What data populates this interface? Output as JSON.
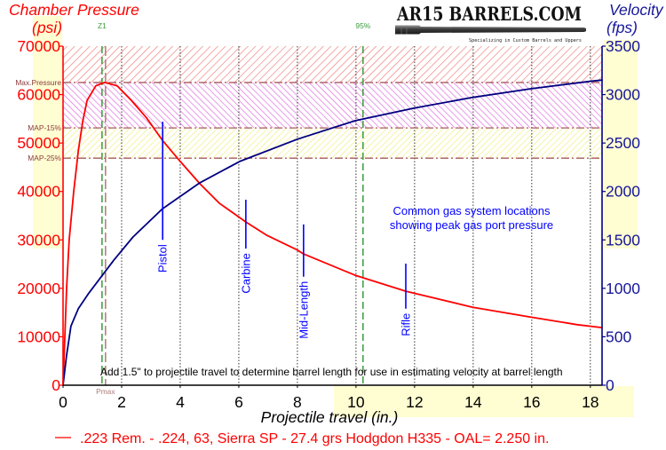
{
  "logo": {
    "title": "AR15 BARRELS.COM",
    "tagline": "Specializing in Custom Barrels and Uppers"
  },
  "colors": {
    "pressure": "#ff0000",
    "velocity": "#000080",
    "velocity_text": "#16169a",
    "gas_port": "#0000ff",
    "reference_line": "#a85a5a",
    "reference_text": "#8b3a3a",
    "marker_green": "#3a9a3a",
    "marker_brown": "#b07a7a",
    "highlight": "#fffdd2",
    "band_red": "#f07878",
    "band_magenta": "#e070e0",
    "band_yellow": "#f2ee78"
  },
  "chart_data": {
    "type": "line",
    "title": "",
    "xlabel": "Projectile travel (in.)",
    "ylabel": "Chamber Pressure (psi)",
    "y2label": "Velocity (fps)",
    "ylabel_display": [
      "Chamber Pressure",
      "(psi)"
    ],
    "y2label_display": [
      "Velocity",
      "(fps)"
    ],
    "xlim": [
      0,
      18.4
    ],
    "ylim": [
      0,
      70000
    ],
    "y2lim": [
      0,
      3500
    ],
    "xticks": [
      0,
      2,
      4,
      6,
      8,
      10,
      12,
      14,
      16,
      18
    ],
    "yticks": [
      0,
      10000,
      20000,
      30000,
      40000,
      50000,
      60000,
      70000
    ],
    "y2ticks": [
      0,
      500,
      1000,
      1500,
      2000,
      2500,
      3000,
      3500
    ],
    "grid": {
      "x": true,
      "y": false,
      "style": "dotted"
    },
    "legend": {
      "position": "bottom",
      "entries": [
        ".223 Rem. - .224, 63, Sierra SP - 27.4 grs Hodgdon H335 - OAL= 2.250 in."
      ]
    },
    "series": [
      {
        "name": "Chamber Pressure",
        "axis": "left",
        "unit": "psi",
        "color": "#ff0000",
        "x": [
          0,
          0.06,
          0.12,
          0.21,
          0.36,
          0.52,
          0.67,
          0.82,
          1.12,
          1.42,
          1.85,
          2.33,
          2.85,
          3.39,
          4.0,
          4.67,
          5.33,
          6.24,
          6.94,
          8.0,
          8.21,
          9.97,
          11.7,
          13.97,
          15.94,
          17.55,
          18.4
        ],
        "y": [
          0,
          9900,
          20000,
          30000,
          39800,
          48400,
          54400,
          58800,
          61800,
          62500,
          61800,
          58800,
          55200,
          50600,
          46200,
          41600,
          37600,
          33700,
          31000,
          27900,
          27100,
          22700,
          19400,
          16100,
          14100,
          12500,
          11900
        ]
      },
      {
        "name": "Velocity",
        "axis": "right",
        "unit": "fps",
        "color": "#000080",
        "x": [
          0,
          0.12,
          0.27,
          0.52,
          0.88,
          1.73,
          2.39,
          3.39,
          4.67,
          6.03,
          8.0,
          9.97,
          11.97,
          13.97,
          15.97,
          17.94,
          18.4
        ],
        "y": [
          0,
          310,
          610,
          790,
          950,
          1290,
          1530,
          1820,
          2090,
          2310,
          2540,
          2730,
          2860,
          2970,
          3060,
          3135,
          3150
        ]
      }
    ],
    "bands": [
      {
        "name": "over-max-pressure",
        "from": 62500,
        "to": 70000,
        "pattern": "hatch-red"
      },
      {
        "name": "max-to-map-15",
        "from": 53125,
        "to": 62500,
        "pattern": "hatch-magenta"
      },
      {
        "name": "map-15-to-map-25",
        "from": 46875,
        "to": 53125,
        "pattern": "hatch-yellow"
      }
    ],
    "reference_lines": [
      {
        "label": "Max.Pressure",
        "value": 62500
      },
      {
        "label": "MAP-15%",
        "value": 53125
      },
      {
        "label": "MAP-25%",
        "value": 46875
      }
    ],
    "vertical_markers": [
      {
        "label": "Z1",
        "x": 1.33,
        "color": "#3a9a3a",
        "label_pos": "top"
      },
      {
        "label": "Pmax",
        "x": 1.45,
        "color": "#b07a7a",
        "label_pos": "bottom"
      },
      {
        "label": "95%",
        "x": 10.24,
        "color": "#3a9a3a",
        "label_pos": "top"
      }
    ],
    "gas_ports": [
      {
        "label": "Pistol",
        "x": 3.4,
        "peak_pressure": 50600,
        "line_top": 54400,
        "line_bottom": 30000
      },
      {
        "label": "Carbine",
        "x": 6.24,
        "peak_pressure": 33700,
        "line_top": 38300,
        "line_bottom": 28200
      },
      {
        "label": "Mid-Length",
        "x": 8.21,
        "peak_pressure": 27100,
        "line_top": 33200,
        "line_bottom": 22400
      },
      {
        "label": "Rifle",
        "x": 11.7,
        "peak_pressure": 19400,
        "line_top": 25100,
        "line_bottom": 15800
      }
    ],
    "annotations": {
      "gas_note": [
        "Common gas system locations",
        "showing peak gas port pressure"
      ],
      "barrel_note": "Add 1.5\" to projectile travel to determine barrel length for use in estimating velocity at barrel length"
    }
  }
}
